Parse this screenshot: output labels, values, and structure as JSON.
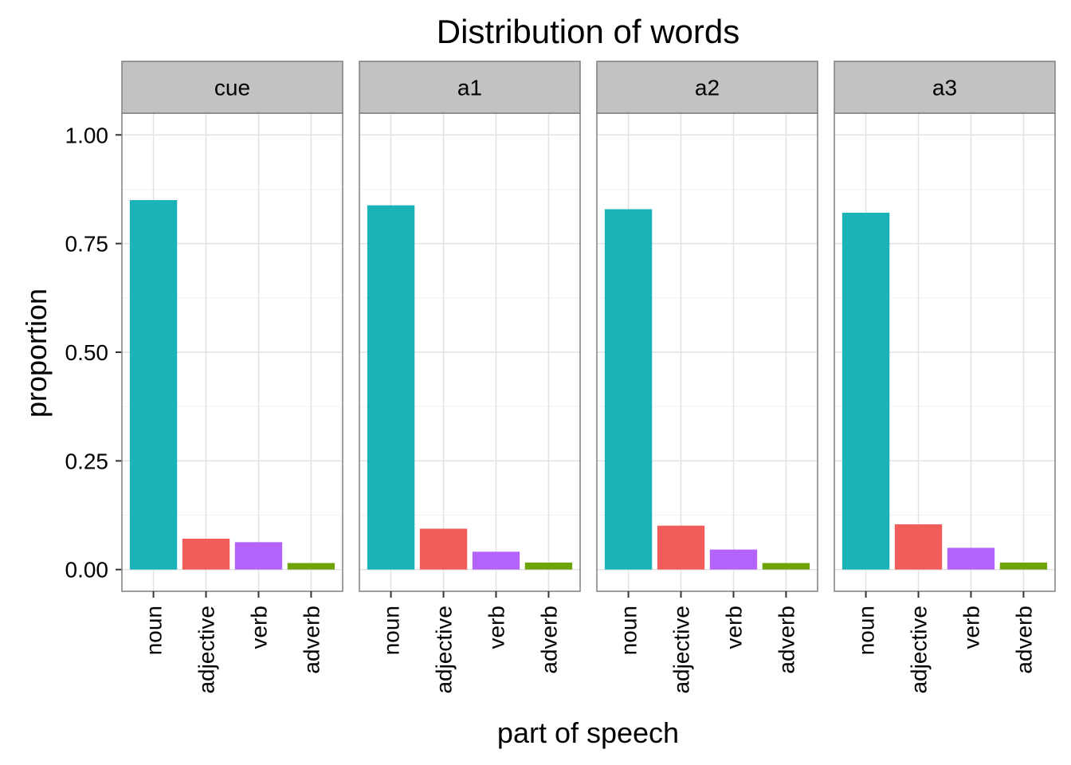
{
  "chart_data": {
    "type": "bar",
    "title": "Distribution of words",
    "xlabel": "part of speech",
    "ylabel": "proportion",
    "ylim": [
      -0.05,
      1.05
    ],
    "yticks": [
      0,
      0.25,
      0.5,
      0.75,
      1.0
    ],
    "ytick_labels": [
      "0.00",
      "0.25",
      "0.50",
      "0.75",
      "1.00"
    ],
    "categories": [
      "noun",
      "adjective",
      "verb",
      "adverb"
    ],
    "category_colors": [
      "#19B3B8",
      "#F25C5A",
      "#B362FA",
      "#6EA40A"
    ],
    "grid": true,
    "legend": "none",
    "facets": [
      {
        "label": "cue",
        "values": [
          0.85,
          0.071,
          0.063,
          0.015
        ]
      },
      {
        "label": "a1",
        "values": [
          0.838,
          0.094,
          0.041,
          0.016
        ]
      },
      {
        "label": "a2",
        "values": [
          0.829,
          0.101,
          0.046,
          0.015
        ]
      },
      {
        "label": "a3",
        "values": [
          0.821,
          0.104,
          0.05,
          0.016
        ]
      }
    ]
  }
}
